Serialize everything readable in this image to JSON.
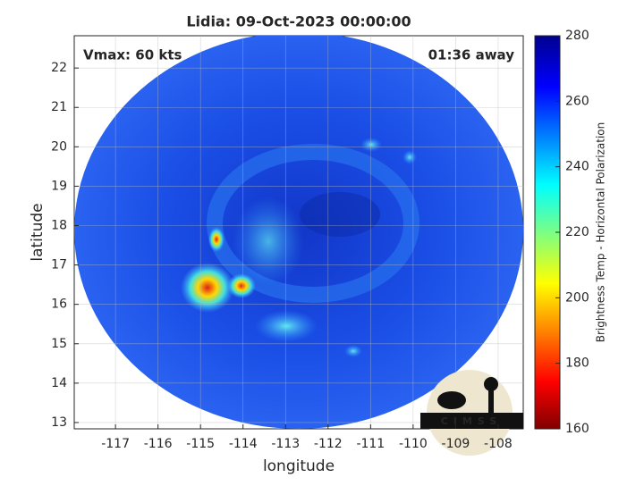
{
  "chart_data": {
    "type": "heatmap",
    "title": "Lidia: 09-Oct-2023 00:00:00",
    "annotations": [
      "Vmax: 60 kts",
      "01:36 away"
    ],
    "x_label": "longitude",
    "y_label": "latitude",
    "xlim": [
      -117.97,
      -107.41
    ],
    "xticks": [
      -117,
      -116,
      -115,
      -114,
      -113,
      -112,
      -111,
      -110,
      -109,
      -108
    ],
    "ylim": [
      12.84,
      22.82
    ],
    "yticks": [
      13,
      14,
      15,
      16,
      17,
      18,
      19,
      20,
      21,
      22
    ],
    "grid": true,
    "colorbar_label": "Brightness Temp - Horizontal Polarization",
    "clim": [
      160,
      280
    ],
    "cticks": [
      160,
      180,
      200,
      220,
      240,
      260,
      280
    ],
    "logo_text": "CIMSS"
  }
}
